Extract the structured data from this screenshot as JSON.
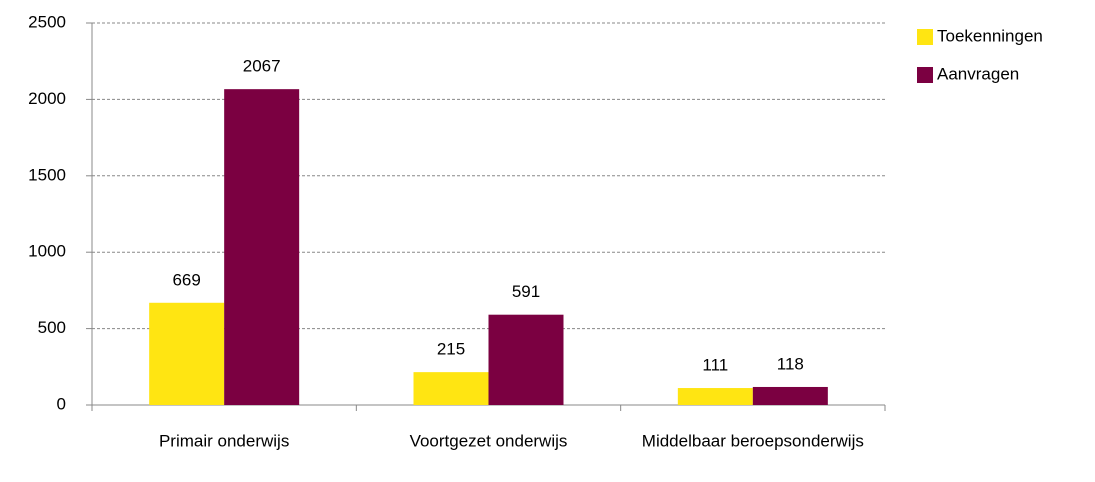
{
  "chart_data": {
    "type": "bar",
    "categories": [
      "Primair onderwijs",
      "Voortgezet onderwijs",
      "Middelbaar beroepsonderwijs"
    ],
    "series": [
      {
        "name": "Toekenningen",
        "color": "#ffe512",
        "values": [
          669,
          215,
          111
        ]
      },
      {
        "name": "Aanvragen",
        "color": "#7b0041",
        "values": [
          2067,
          591,
          118
        ]
      }
    ],
    "ylim": [
      0,
      2500
    ],
    "yticks": [
      0,
      500,
      1000,
      1500,
      2000,
      2500
    ],
    "grid": true,
    "legend": "right"
  }
}
